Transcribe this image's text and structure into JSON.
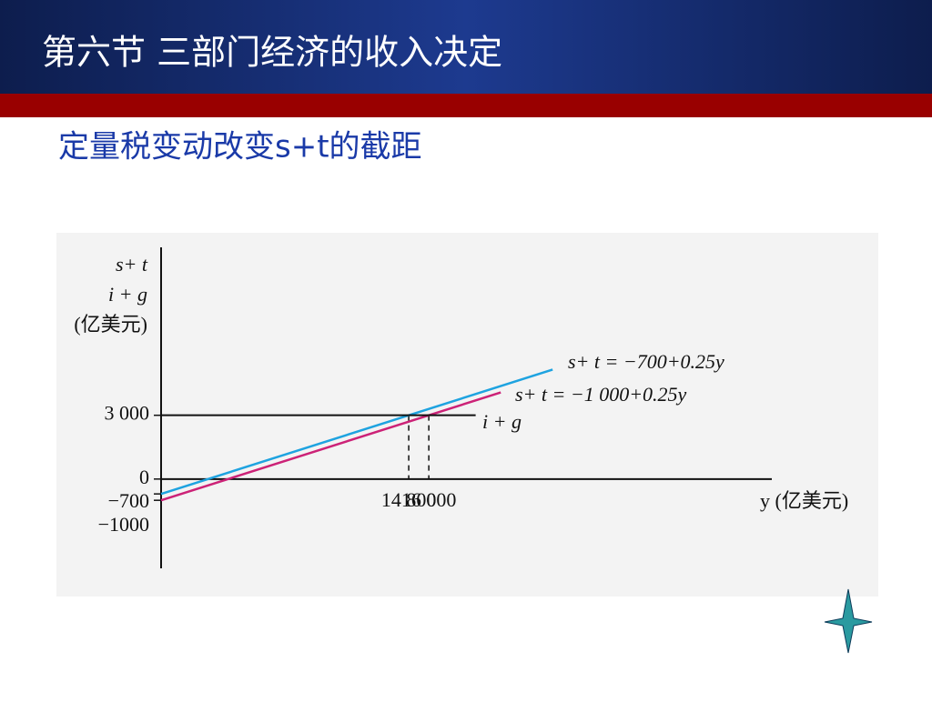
{
  "header": {
    "title": "第六节  三部门经济的收入决定",
    "subtitle": "定量税变动改变s+t的截距"
  },
  "chart_data": {
    "type": "line",
    "ylabel": [
      "s+ t",
      "i + g",
      "(亿美元)"
    ],
    "xlabel": "y (亿美元)",
    "xlim": [
      0,
      36500
    ],
    "ylim": [
      -4200,
      10900
    ],
    "xticks": [
      {
        "value": 14800,
        "label": "14 800"
      },
      {
        "value": 16000,
        "label": "16 000"
      }
    ],
    "yticks": [
      {
        "value": 3000,
        "label": "3 000"
      },
      0,
      {
        "value": -700,
        "label": "−700"
      },
      {
        "value": -1000,
        "label": "−1000"
      }
    ],
    "series": [
      {
        "name": "s+ t = −700+0.25y",
        "color": "#1ea3e0",
        "x": [
          0,
          23400
        ],
        "values": [
          -700,
          5150
        ]
      },
      {
        "name": "s+ t = −1 000+0.25y",
        "color": "#cc2277",
        "x": [
          0,
          20300
        ],
        "values": [
          -1000,
          4075
        ]
      },
      {
        "name": "i + g",
        "color": "#111111",
        "x": [
          0,
          18800
        ],
        "values": [
          3000,
          3000
        ]
      }
    ]
  }
}
